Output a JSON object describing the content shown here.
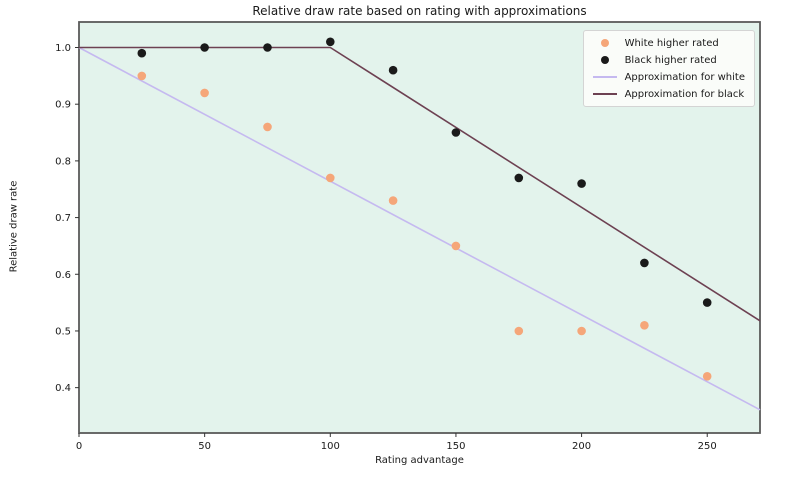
{
  "chart_data": {
    "type": "scatter",
    "title": "Relative draw rate based on rating with approximations",
    "xlabel": "Rating advantage",
    "ylabel": "Relative draw rate",
    "xlim": [
      0,
      271
    ],
    "ylim": [
      0.32,
      1.045
    ],
    "xticks": [
      0,
      50,
      100,
      150,
      200,
      250
    ],
    "yticks": [
      0.4,
      0.5,
      0.6,
      0.7,
      0.8,
      0.9,
      1.0
    ],
    "grid": false,
    "legend_position": "upper right",
    "colors": {
      "plot_background": "#e3f3ec",
      "figure_background": "#ffffff",
      "spine": "#5a5a5a",
      "tick": "#333333",
      "text": "#1a1a1a",
      "white_marker": "#f5a679",
      "black_marker": "#1a1a1a",
      "white_line": "#c5b9f0",
      "black_line": "#6d4152",
      "legend_background": "#fafcf9",
      "legend_border": "#d4d4d4"
    },
    "series": [
      {
        "name": "White higher rated",
        "kind": "scatter",
        "color_key": "white_marker",
        "x": [
          25,
          50,
          75,
          100,
          125,
          150,
          175,
          200,
          225,
          250
        ],
        "y": [
          0.95,
          0.92,
          0.86,
          0.77,
          0.73,
          0.65,
          0.5,
          0.5,
          0.51,
          0.42
        ]
      },
      {
        "name": "Black higher rated",
        "kind": "scatter",
        "color_key": "black_marker",
        "x": [
          25,
          50,
          75,
          100,
          125,
          150,
          175,
          200,
          225,
          250
        ],
        "y": [
          0.99,
          1.0,
          1.0,
          1.01,
          0.96,
          0.85,
          0.77,
          0.76,
          0.62,
          0.55
        ]
      },
      {
        "name": "Approximation for white",
        "kind": "line",
        "color_key": "white_line",
        "points": [
          [
            0,
            1.0
          ],
          [
            271,
            0.361
          ]
        ]
      },
      {
        "name": "Approximation for black",
        "kind": "line",
        "color_key": "black_line",
        "points": [
          [
            0,
            1.0
          ],
          [
            100,
            1.0
          ],
          [
            271,
            0.518
          ]
        ]
      }
    ]
  }
}
